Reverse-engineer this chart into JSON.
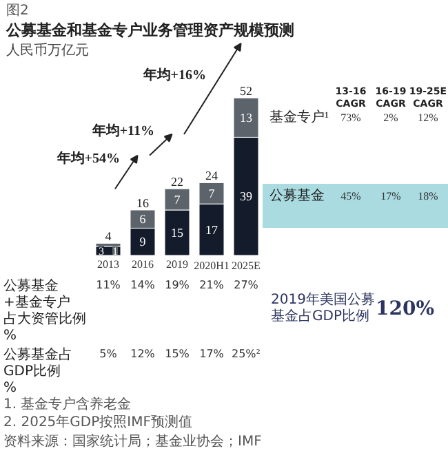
{
  "chart_data": {
    "type": "bar",
    "stacked": true,
    "data_labels": true,
    "legend": "right",
    "title": "公募基金和基金专户业务管理资产规模预测",
    "subtitle": "人民币万亿元",
    "categories": [
      "2013",
      "2016",
      "2019",
      "2020H1",
      "2025E"
    ],
    "series": [
      {
        "name": "公募基金",
        "color": "#141b2b",
        "values": [
          3,
          9,
          15,
          17,
          39
        ]
      },
      {
        "name": "基金专户¹",
        "color": "#5c636b",
        "values": [
          1,
          6,
          7,
          7,
          13
        ]
      }
    ],
    "totals": [
      "4",
      "16",
      "22",
      "24",
      "52"
    ],
    "annotations": [
      "图2",
      "年均+54%",
      "年均+11%",
      "年均+16%",
      "13-16\nCAGR",
      "16-19\nCAGR",
      "19-25E\nCAGR",
      "73%",
      "2%",
      "12%",
      "45%",
      "17%",
      "18%",
      "公募基金+基金专户占大资管比例%",
      "11%",
      "14%",
      "19%",
      "21%",
      "27%",
      "公募基金占GDP比例%",
      "5%",
      "12%",
      "15%",
      "17%",
      "25%²",
      "2019年美国公募基金占GDP比例",
      "120%",
      "1.  基金专户含养老金",
      "2.  2025年GDP按照IMF预测值",
      "资料来源：国家统计局；基金业协会；IMF"
    ]
  }
}
